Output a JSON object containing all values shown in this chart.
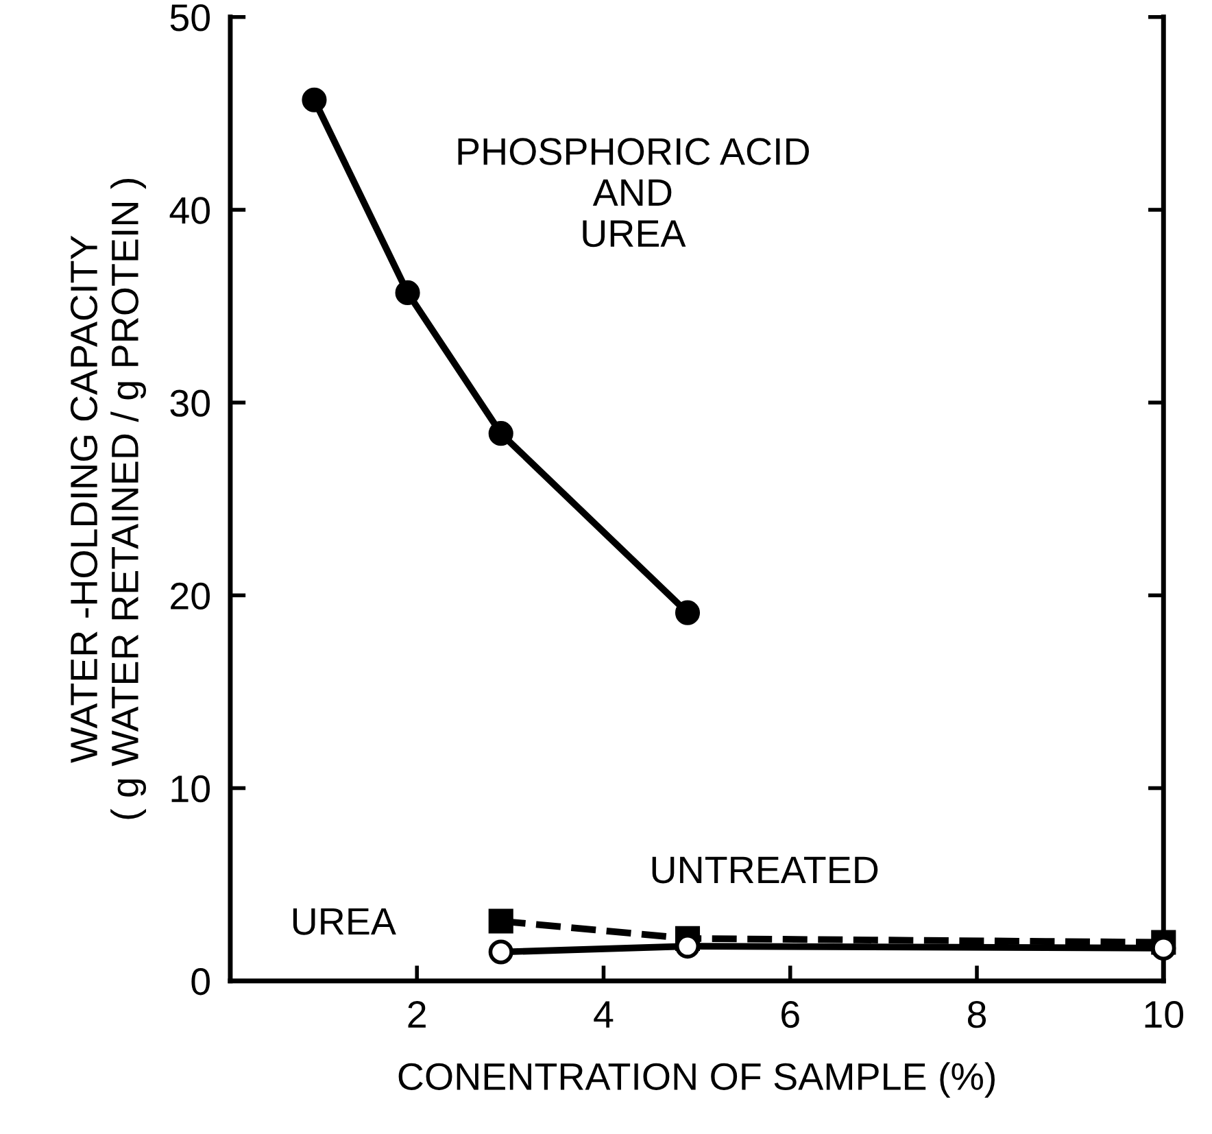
{
  "chart_data": {
    "type": "line",
    "xlabel": "CONENTRATION OF SAMPLE (%)",
    "ylabel": "WATER -HOLDING CAPACITY\n( g WATER RETAINED / g PROTEIN )",
    "series": [
      {
        "name": "PHOSPHORIC ACID\nAND\nUREA",
        "color": "#000000",
        "x": [
          0.9,
          1.9,
          2.9,
          4.9
        ],
        "values": [
          45.7,
          35.7,
          28.4,
          19.1
        ],
        "marker": "circle",
        "line_style": "solid"
      },
      {
        "name": "UNTREATED",
        "color": "#000000",
        "x": [
          2.9,
          4.9,
          10
        ],
        "values": [
          3.1,
          2.2,
          2.0
        ],
        "marker": "square",
        "line_style": "dashed"
      },
      {
        "name": "UREA",
        "color": "#000000",
        "x": [
          2.9,
          4.9,
          10
        ],
        "values": [
          1.5,
          1.8,
          1.7
        ],
        "marker": "circle",
        "line_style": "solid"
      }
    ],
    "xlim": [
      0,
      10
    ],
    "ylim": [
      0,
      50
    ],
    "xticks": [
      2,
      4,
      6,
      8,
      10
    ],
    "yticks": [
      0,
      10,
      20,
      30,
      40,
      50
    ],
    "grid": false,
    "legend": false
  }
}
